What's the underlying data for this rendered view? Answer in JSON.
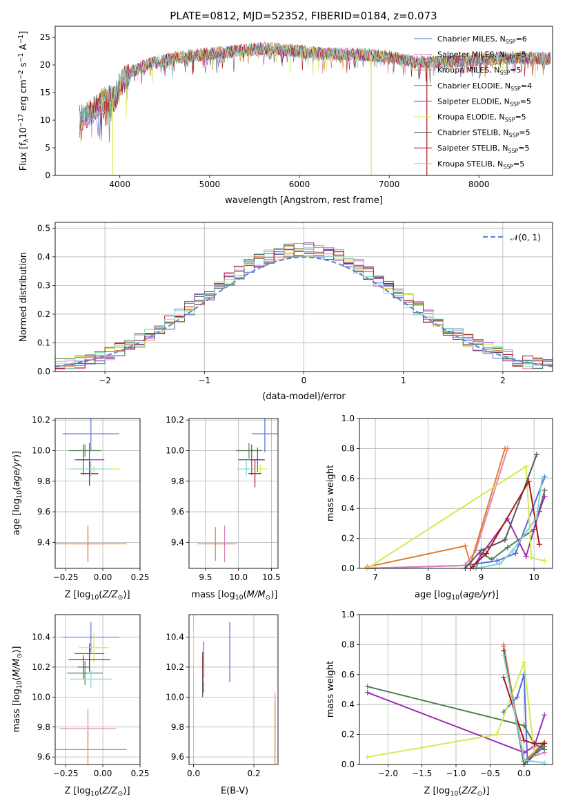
{
  "figure_title": "PLATE=0812, MJD=52352, FIBERID=0184, z=0.073",
  "colors": {
    "Chabrier MILES": "#5470d8",
    "Salpeter MILES": "#e47eb5",
    "Kroupa MILES": "#e07d2b",
    "Chabrier ELODIE": "#4f7f4f",
    "Salpeter ELODIE": "#9b2fb0",
    "Kroupa ELODIE": "#d6e94e",
    "Chabrier STELIB": "#555555",
    "Salpeter STELIB": "#a8161b",
    "Kroupa STELIB": "#7fd5d5",
    "gaussian": "#5b8ad6",
    "grid": "#b0b0b0"
  },
  "chart_data": [
    {
      "id": "spectrum",
      "type": "line",
      "title": "PLATE=0812, MJD=52352, FIBERID=0184, z=0.073",
      "xlabel": "wavelength [Angstrom, rest frame]",
      "ylabel": "Flux [f_λ10^-17 erg cm^-2 s^-1 A^-1]",
      "xlim": [
        3280,
        8820
      ],
      "ylim": [
        0,
        27
      ],
      "xticks": [
        "4000",
        "5000",
        "6000",
        "7000",
        "8000"
      ],
      "yticks": [
        "0",
        "5",
        "10",
        "15",
        "20",
        "25"
      ],
      "grid": false,
      "legend_position": "right",
      "legend": [
        "Chabrier MILES, N_SSP=6",
        "Salpeter MILES, N_SSP=5",
        "Kroupa MILES, N_SSP=5",
        "Chabrier ELODIE, N_SSP=4",
        "Salpeter ELODIE, N_SSP=5",
        "Kroupa ELODIE, N_SSP=5",
        "Chabrier STELIB, N_SSP=5",
        "Salpeter STELIB, N_SSP=5",
        "Kroupa STELIB, N_SSP=5"
      ],
      "continuum": [
        [
          3550,
          10.5
        ],
        [
          3650,
          11.0
        ],
        [
          3800,
          13.5
        ],
        [
          3950,
          14.0
        ],
        [
          4000,
          16.5
        ],
        [
          4150,
          19.0
        ],
        [
          4400,
          20.5
        ],
        [
          4700,
          21.5
        ],
        [
          5000,
          22.0
        ],
        [
          5300,
          22.5
        ],
        [
          5600,
          23.0
        ],
        [
          6000,
          22.5
        ],
        [
          6300,
          22.0
        ],
        [
          6600,
          22.0
        ],
        [
          7000,
          21.5
        ],
        [
          7300,
          20.5
        ],
        [
          7600,
          20.5
        ],
        [
          8000,
          21.0
        ],
        [
          8400,
          21.3
        ],
        [
          8800,
          21.2
        ]
      ],
      "drops": [
        [
          3920,
          "Kroupa ELODIE"
        ],
        [
          6800,
          "Kroupa ELODIE"
        ],
        [
          7420,
          "Salpeter STELIB"
        ]
      ]
    },
    {
      "id": "residuals",
      "type": "histogram",
      "xlabel": "(data-model)/error",
      "ylabel": "Normed distribution",
      "xlim": [
        -2.5,
        2.5
      ],
      "ylim": [
        0,
        0.52
      ],
      "xticks": [
        "−2",
        "−1",
        "0",
        "1",
        "2"
      ],
      "yticks": [
        "0.0",
        "0.1",
        "0.2",
        "0.3",
        "0.4",
        "0.5"
      ],
      "grid": true,
      "legend": [
        "𝒩(0, 1)"
      ],
      "legend_position": "top-right",
      "bin_width": 0.1,
      "curve": "gaussian N(0,1)"
    },
    {
      "id": "age_vs_Z",
      "type": "errorbar",
      "xlabel": "Z [log10(Z/Z☉)]",
      "ylabel": "age [log10(age/yr)]",
      "xlim": [
        -0.32,
        0.25
      ],
      "ylim": [
        9.23,
        10.21
      ],
      "xticks": [
        "−0.25",
        "0.00",
        "0.25"
      ],
      "yticks": [
        "9.4",
        "9.6",
        "9.8",
        "10.0",
        "10.2"
      ],
      "grid": true,
      "points": [
        {
          "s": "Chabrier MILES",
          "x": -0.08,
          "y": 10.11,
          "xerr": 0.19,
          "yerr": 0.11
        },
        {
          "s": "Salpeter MILES",
          "x": -0.1,
          "y": 9.39,
          "xerr": 0.1,
          "yerr": 0.12
        },
        {
          "s": "Kroupa MILES",
          "x": -0.1,
          "y": 9.39,
          "xerr": 0.26,
          "yerr": 0.11
        },
        {
          "s": "Chabrier ELODIE",
          "x": -0.12,
          "y": 10.0,
          "xerr": 0.11,
          "yerr": 0.04
        },
        {
          "s": "Salpeter ELODIE",
          "x": -0.09,
          "y": 9.94,
          "xerr": 0.1,
          "yerr": 0.11
        },
        {
          "s": "Kroupa ELODIE",
          "x": -0.06,
          "y": 9.88,
          "xerr": 0.18,
          "yerr": 0.02
        },
        {
          "s": "Chabrier STELIB",
          "x": -0.13,
          "y": 9.94,
          "xerr": 0.04,
          "yerr": 0.1
        },
        {
          "s": "Salpeter STELIB",
          "x": -0.09,
          "y": 9.85,
          "xerr": 0.06,
          "yerr": 0.08
        },
        {
          "s": "Kroupa STELIB",
          "x": -0.08,
          "y": 9.88,
          "xerr": 0.13,
          "yerr": 0.05
        }
      ]
    },
    {
      "id": "age_vs_mass",
      "type": "errorbar",
      "xlabel": "mass [log10(M/M☉)]",
      "ylabel": "",
      "xlim": [
        9.25,
        10.6
      ],
      "ylim": [
        9.23,
        10.21
      ],
      "xticks": [
        "9.5",
        "10.0",
        "10.5"
      ],
      "yticks": [
        "9.4",
        "9.6",
        "9.8",
        "10.0",
        "10.2"
      ],
      "grid": true,
      "points": [
        {
          "s": "Chabrier MILES",
          "x": 10.4,
          "y": 10.11,
          "xerr": 0.2,
          "yerr": 0.12
        },
        {
          "s": "Salpeter MILES",
          "x": 9.79,
          "y": 9.39,
          "xerr": 0.19,
          "yerr": 0.12
        },
        {
          "s": "Kroupa MILES",
          "x": 9.65,
          "y": 9.39,
          "xerr": 0.27,
          "yerr": 0.11
        },
        {
          "s": "Chabrier ELODIE",
          "x": 10.16,
          "y": 10.0,
          "xerr": 0.2,
          "yerr": 0.05
        },
        {
          "s": "Salpeter ELODIE",
          "x": 10.29,
          "y": 9.94,
          "xerr": 0.1,
          "yerr": 0.08
        },
        {
          "s": "Kroupa ELODIE",
          "x": 10.33,
          "y": 9.88,
          "xerr": 0.12,
          "yerr": 0.03
        },
        {
          "s": "Chabrier STELIB",
          "x": 10.2,
          "y": 9.94,
          "xerr": 0.2,
          "yerr": 0.1
        },
        {
          "s": "Salpeter STELIB",
          "x": 10.25,
          "y": 9.85,
          "xerr": 0.1,
          "yerr": 0.09
        },
        {
          "s": "Kroupa STELIB",
          "x": 10.12,
          "y": 9.88,
          "xerr": 0.14,
          "yerr": 0.05
        }
      ]
    },
    {
      "id": "weight_vs_age",
      "type": "line",
      "xlabel": "age [log10(age/yr)]",
      "ylabel": "mass weight",
      "xlim": [
        6.7,
        10.35
      ],
      "ylim": [
        0,
        1
      ],
      "xticks": [
        "7",
        "8",
        "9",
        "10"
      ],
      "yticks": [
        "0.0",
        "0.2",
        "0.4",
        "0.6",
        "0.8",
        "1.0"
      ],
      "grid": true,
      "series": [
        {
          "name": "Chabrier MILES",
          "points": [
            [
              6.85,
              0.0
            ],
            [
              8.7,
              0.02
            ],
            [
              9.3,
              0.05
            ],
            [
              9.65,
              0.1
            ],
            [
              10.2,
              0.61
            ]
          ]
        },
        {
          "name": "Salpeter MILES",
          "points": [
            [
              6.85,
              0.0
            ],
            [
              8.7,
              0.02
            ],
            [
              8.9,
              0.12
            ],
            [
              9.5,
              0.8
            ]
          ]
        },
        {
          "name": "Kroupa MILES",
          "points": [
            [
              6.85,
              0.01
            ],
            [
              8.7,
              0.15
            ],
            [
              8.8,
              0.03
            ],
            [
              9.45,
              0.8
            ]
          ]
        },
        {
          "name": "Chabrier ELODIE",
          "points": [
            [
              8.9,
              0.0
            ],
            [
              9.0,
              0.1
            ],
            [
              9.2,
              0.06
            ],
            [
              9.5,
              0.14
            ],
            [
              10.0,
              0.26
            ],
            [
              10.2,
              0.52
            ]
          ]
        },
        {
          "name": "Salpeter ELODIE",
          "points": [
            [
              8.85,
              0.01
            ],
            [
              9.0,
              0.09
            ],
            [
              9.5,
              0.33
            ],
            [
              9.85,
              0.08
            ],
            [
              10.1,
              0.38
            ],
            [
              10.2,
              0.48
            ]
          ]
        },
        {
          "name": "Kroupa ELODIE",
          "points": [
            [
              6.85,
              0.0
            ],
            [
              9.85,
              0.68
            ],
            [
              9.95,
              0.07
            ],
            [
              10.2,
              0.05
            ]
          ]
        },
        {
          "name": "Chabrier STELIB",
          "points": [
            [
              8.7,
              0.0
            ],
            [
              9.0,
              0.12
            ],
            [
              9.45,
              0.19
            ],
            [
              10.05,
              0.76
            ]
          ]
        },
        {
          "name": "Salpeter STELIB",
          "points": [
            [
              8.8,
              0.0
            ],
            [
              9.1,
              0.1
            ],
            [
              9.9,
              0.58
            ],
            [
              10.1,
              0.16
            ]
          ]
        },
        {
          "name": "Kroupa STELIB",
          "points": [
            [
              8.9,
              0.0
            ],
            [
              9.35,
              0.03
            ],
            [
              9.6,
              0.12
            ],
            [
              10.05,
              0.34
            ],
            [
              10.15,
              0.6
            ]
          ]
        }
      ]
    },
    {
      "id": "mass_vs_Z",
      "type": "errorbar",
      "xlabel": "Z [log10(Z/Z☉)]",
      "ylabel": "mass [log10(M/M☉)]",
      "xlim": [
        -0.32,
        0.25
      ],
      "ylim": [
        9.55,
        10.55
      ],
      "xticks": [
        "−0.25",
        "0.00",
        "0.25"
      ],
      "yticks": [
        "9.6",
        "9.8",
        "10.0",
        "10.2",
        "10.4"
      ],
      "grid": true,
      "points": [
        {
          "s": "Chabrier MILES",
          "x": -0.08,
          "y": 10.4,
          "xerr": 0.19,
          "yerr": 0.1
        },
        {
          "s": "Salpeter MILES",
          "x": -0.1,
          "y": 9.79,
          "xerr": 0.19,
          "yerr": 0.13
        },
        {
          "s": "Kroupa MILES",
          "x": -0.1,
          "y": 9.65,
          "xerr": 0.26,
          "yerr": 0.13
        },
        {
          "s": "Chabrier ELODIE",
          "x": -0.12,
          "y": 10.16,
          "xerr": 0.12,
          "yerr": 0.08
        },
        {
          "s": "Salpeter ELODIE",
          "x": -0.09,
          "y": 10.29,
          "xerr": 0.1,
          "yerr": 0.07
        },
        {
          "s": "Kroupa ELODIE",
          "x": -0.06,
          "y": 10.33,
          "xerr": 0.1,
          "yerr": 0.1
        },
        {
          "s": "Chabrier STELIB",
          "x": -0.13,
          "y": 10.2,
          "xerr": 0.04,
          "yerr": 0.08
        },
        {
          "s": "Salpeter STELIB",
          "x": -0.09,
          "y": 10.25,
          "xerr": 0.14,
          "yerr": 0.08
        },
        {
          "s": "Kroupa STELIB",
          "x": -0.08,
          "y": 10.12,
          "xerr": 0.14,
          "yerr": 0.06
        }
      ]
    },
    {
      "id": "mass_vs_ebv",
      "type": "errorbar",
      "xlabel": "E(B-V)",
      "ylabel": "",
      "xlim": [
        -0.015,
        0.28
      ],
      "ylim": [
        9.55,
        10.55
      ],
      "xticks": [
        "0.0",
        "0.2"
      ],
      "yticks": [
        "9.6",
        "9.8",
        "10.0",
        "10.2",
        "10.4"
      ],
      "grid": true,
      "points": [
        {
          "s": "Chabrier MILES",
          "x": 0.12,
          "y": 10.3,
          "xerr": 0.0,
          "yerr": 0.2
        },
        {
          "s": "Salpeter MILES",
          "x": 0.27,
          "y": 9.85,
          "xerr": 0.0,
          "yerr": 0.18
        },
        {
          "s": "Kroupa MILES",
          "x": 0.27,
          "y": 9.75,
          "xerr": 0.0,
          "yerr": 0.22
        },
        {
          "s": "Chabrier ELODIE",
          "x": 0.033,
          "y": 10.15,
          "xerr": 0.0,
          "yerr": 0.12
        },
        {
          "s": "Salpeter ELODIE",
          "x": 0.034,
          "y": 10.25,
          "xerr": 0.0,
          "yerr": 0.12
        },
        {
          "s": "Kroupa ELODIE",
          "x": 0.0,
          "y": 10.33,
          "xerr": 0.0,
          "yerr": 0.12
        },
        {
          "s": "Chabrier STELIB",
          "x": 0.03,
          "y": 10.15,
          "xerr": 0.0,
          "yerr": 0.15
        },
        {
          "s": "Salpeter STELIB",
          "x": 0.031,
          "y": 10.2,
          "xerr": 0.0,
          "yerr": 0.1
        },
        {
          "s": "Kroupa STELIB",
          "x": 0.032,
          "y": 10.2,
          "xerr": 0.0,
          "yerr": 0.1
        }
      ]
    },
    {
      "id": "weight_vs_Z",
      "type": "line",
      "xlabel": "Z [log10(Z/Z☉)]",
      "ylabel": "mass weight",
      "xlim": [
        -2.42,
        0.42
      ],
      "ylim": [
        0,
        1
      ],
      "xticks": [
        "−2.0",
        "−1.5",
        "−1.0",
        "−0.5",
        "0.0",
        "0.5"
      ],
      "yticks": [
        "0.0",
        "0.2",
        "0.4",
        "0.6",
        "0.8",
        "1.0"
      ],
      "grid": true,
      "series": [
        {
          "name": "Chabrier MILES",
          "points": [
            [
              -0.3,
              0.35
            ],
            [
              -0.1,
              0.45
            ],
            [
              0.0,
              0.6
            ],
            [
              0.05,
              0.02
            ],
            [
              0.3,
              0.12
            ]
          ]
        },
        {
          "name": "Salpeter MILES",
          "points": [
            [
              -0.3,
              0.8
            ],
            [
              0.0,
              0.03
            ],
            [
              0.3,
              0.08
            ]
          ]
        },
        {
          "name": "Kroupa MILES",
          "points": [
            [
              -0.3,
              0.79
            ],
            [
              0.0,
              0.02
            ],
            [
              0.3,
              0.15
            ]
          ]
        },
        {
          "name": "Chabrier ELODIE",
          "points": [
            [
              -2.3,
              0.52
            ],
            [
              0.0,
              0.26
            ],
            [
              0.15,
              0.14
            ],
            [
              0.3,
              0.1
            ]
          ]
        },
        {
          "name": "Salpeter ELODIE",
          "points": [
            [
              -2.3,
              0.48
            ],
            [
              0.0,
              0.08
            ],
            [
              0.15,
              0.12
            ],
            [
              0.3,
              0.33
            ]
          ]
        },
        {
          "name": "Kroupa ELODIE",
          "points": [
            [
              -2.3,
              0.05
            ],
            [
              -0.4,
              0.2
            ],
            [
              0.0,
              0.68
            ],
            [
              0.15,
              0.07
            ]
          ]
        },
        {
          "name": "Chabrier STELIB",
          "points": [
            [
              -0.3,
              0.76
            ],
            [
              0.0,
              0.0
            ],
            [
              0.3,
              0.14
            ]
          ]
        },
        {
          "name": "Salpeter STELIB",
          "points": [
            [
              -0.3,
              0.58
            ],
            [
              0.0,
              0.16
            ],
            [
              0.15,
              0.14
            ],
            [
              0.3,
              0.14
            ]
          ]
        },
        {
          "name": "Kroupa STELIB",
          "points": [
            [
              -0.3,
              0.73
            ],
            [
              0.0,
              0.03
            ],
            [
              0.3,
              0.01
            ]
          ]
        }
      ]
    }
  ]
}
